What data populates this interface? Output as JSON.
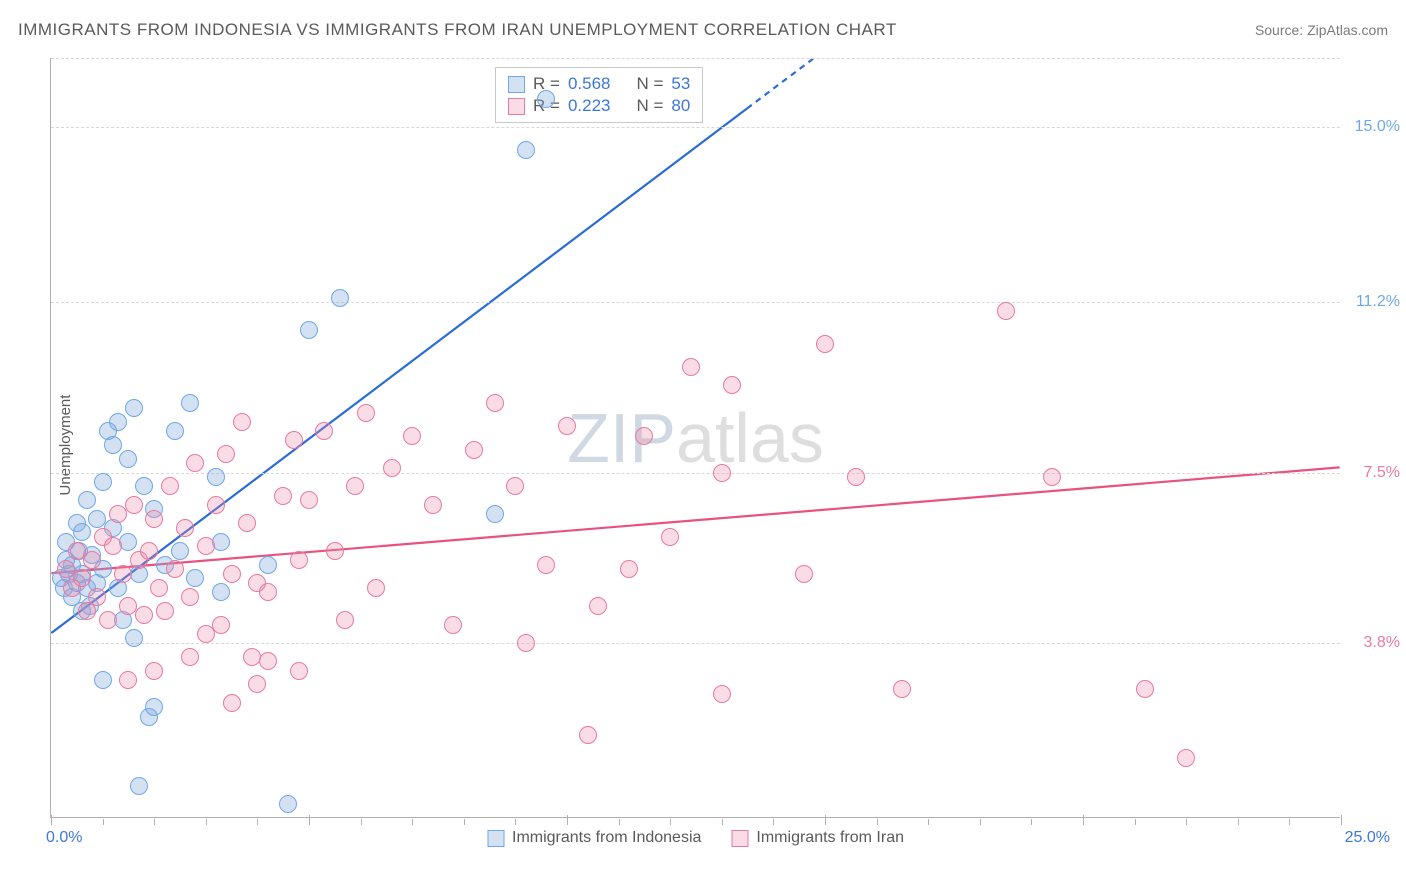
{
  "title": "IMMIGRANTS FROM INDONESIA VS IMMIGRANTS FROM IRAN UNEMPLOYMENT CORRELATION CHART",
  "source": "Source: ZipAtlas.com",
  "ylabel": "Unemployment",
  "watermark_a": "ZIP",
  "watermark_b": "atlas",
  "watermark_color_a": "rgba(120,145,175,0.35)",
  "watermark_color_b": "rgba(160,160,160,0.35)",
  "chart": {
    "type": "scatter",
    "xlim": [
      0,
      25
    ],
    "ylim": [
      0,
      16.5
    ],
    "background_color": "#ffffff",
    "grid_color": "#d8d8d8",
    "yticks": [
      {
        "v": 3.8,
        "label": "3.8%",
        "color": "#e87aa0"
      },
      {
        "v": 7.5,
        "label": "7.5%",
        "color": "#e87aa0"
      },
      {
        "v": 11.2,
        "label": "11.2%",
        "color": "#6fa8e8"
      },
      {
        "v": 15.0,
        "label": "15.0%",
        "color": "#6fa8e8"
      }
    ],
    "xticks_major": [
      0,
      5,
      10,
      15,
      20,
      25
    ],
    "xticks_minor_step": 1,
    "xlabel_left": {
      "text": "0.0%",
      "color": "#3c78d8"
    },
    "xlabel_right": {
      "text": "25.0%",
      "color": "#3c78d8"
    },
    "point_radius": 9,
    "point_border_width": 1.5,
    "series": [
      {
        "name": "Immigrants from Indonesia",
        "fill": "rgba(130,170,220,0.35)",
        "stroke": "#6fa8e8",
        "trend": {
          "x1": 0,
          "y1": 4.0,
          "x2": 14.8,
          "y2": 16.5,
          "color": "#2b6cd4",
          "width": 2.2,
          "dash_after_x": 13.5
        },
        "R": "0.568",
        "N": "53",
        "points": [
          [
            0.2,
            5.2
          ],
          [
            0.25,
            5.0
          ],
          [
            0.3,
            5.6
          ],
          [
            0.3,
            6.0
          ],
          [
            0.35,
            5.3
          ],
          [
            0.4,
            4.8
          ],
          [
            0.4,
            5.5
          ],
          [
            0.5,
            5.1
          ],
          [
            0.5,
            6.4
          ],
          [
            0.55,
            5.8
          ],
          [
            0.6,
            5.3
          ],
          [
            0.6,
            6.2
          ],
          [
            0.7,
            5.0
          ],
          [
            0.7,
            6.9
          ],
          [
            0.75,
            4.6
          ],
          [
            0.8,
            5.7
          ],
          [
            0.9,
            5.1
          ],
          [
            0.9,
            6.5
          ],
          [
            1.0,
            5.4
          ],
          [
            1.0,
            7.3
          ],
          [
            1.1,
            8.4
          ],
          [
            1.2,
            8.1
          ],
          [
            1.2,
            6.3
          ],
          [
            1.3,
            5.0
          ],
          [
            1.3,
            8.6
          ],
          [
            1.5,
            7.8
          ],
          [
            1.5,
            6.0
          ],
          [
            1.6,
            8.9
          ],
          [
            1.7,
            5.3
          ],
          [
            1.8,
            7.2
          ],
          [
            1.9,
            2.2
          ],
          [
            2.0,
            2.4
          ],
          [
            1.7,
            0.7
          ],
          [
            1.6,
            3.9
          ],
          [
            2.2,
            5.5
          ],
          [
            2.4,
            8.4
          ],
          [
            2.5,
            5.8
          ],
          [
            2.7,
            9.0
          ],
          [
            2.8,
            5.2
          ],
          [
            3.2,
            7.4
          ],
          [
            3.3,
            6.0
          ],
          [
            3.3,
            4.9
          ],
          [
            4.2,
            5.5
          ],
          [
            4.6,
            0.3
          ],
          [
            5.0,
            10.6
          ],
          [
            5.6,
            11.3
          ],
          [
            8.6,
            6.6
          ],
          [
            9.2,
            14.5
          ],
          [
            9.6,
            15.6
          ],
          [
            1.0,
            3.0
          ],
          [
            1.4,
            4.3
          ],
          [
            2.0,
            6.7
          ],
          [
            0.6,
            4.5
          ]
        ]
      },
      {
        "name": "Immigrants from Iran",
        "fill": "rgba(235,140,170,0.3)",
        "stroke": "#e87aa0",
        "trend": {
          "x1": 0,
          "y1": 5.3,
          "x2": 25,
          "y2": 7.6,
          "color": "#e8527e",
          "width": 2.2
        },
        "R": "0.223",
        "N": "80",
        "points": [
          [
            0.3,
            5.4
          ],
          [
            0.4,
            5.0
          ],
          [
            0.5,
            5.8
          ],
          [
            0.6,
            5.2
          ],
          [
            0.7,
            4.5
          ],
          [
            0.8,
            5.6
          ],
          [
            0.9,
            4.8
          ],
          [
            1.0,
            6.1
          ],
          [
            1.1,
            4.3
          ],
          [
            1.2,
            5.9
          ],
          [
            1.3,
            6.6
          ],
          [
            1.4,
            5.3
          ],
          [
            1.5,
            4.6
          ],
          [
            1.6,
            6.8
          ],
          [
            1.7,
            5.6
          ],
          [
            1.8,
            4.4
          ],
          [
            1.9,
            5.8
          ],
          [
            2.0,
            6.5
          ],
          [
            2.1,
            5.0
          ],
          [
            2.2,
            4.5
          ],
          [
            2.3,
            7.2
          ],
          [
            2.4,
            5.4
          ],
          [
            2.6,
            6.3
          ],
          [
            2.7,
            4.8
          ],
          [
            2.8,
            7.7
          ],
          [
            3.0,
            5.9
          ],
          [
            3.0,
            4.0
          ],
          [
            3.2,
            6.8
          ],
          [
            3.3,
            4.2
          ],
          [
            3.4,
            7.9
          ],
          [
            3.5,
            5.3
          ],
          [
            3.7,
            8.6
          ],
          [
            3.8,
            6.4
          ],
          [
            3.9,
            3.5
          ],
          [
            4.0,
            5.1
          ],
          [
            4.0,
            2.9
          ],
          [
            4.2,
            3.4
          ],
          [
            4.2,
            4.9
          ],
          [
            4.5,
            7.0
          ],
          [
            4.7,
            8.2
          ],
          [
            4.8,
            5.6
          ],
          [
            4.8,
            3.2
          ],
          [
            5.0,
            6.9
          ],
          [
            5.3,
            8.4
          ],
          [
            5.5,
            5.8
          ],
          [
            5.7,
            4.3
          ],
          [
            5.9,
            7.2
          ],
          [
            6.1,
            8.8
          ],
          [
            6.3,
            5.0
          ],
          [
            6.6,
            7.6
          ],
          [
            7.0,
            8.3
          ],
          [
            7.4,
            6.8
          ],
          [
            7.8,
            4.2
          ],
          [
            8.2,
            8.0
          ],
          [
            8.6,
            9.0
          ],
          [
            9.0,
            7.2
          ],
          [
            9.6,
            5.5
          ],
          [
            10.0,
            8.5
          ],
          [
            10.4,
            1.8
          ],
          [
            10.6,
            4.6
          ],
          [
            11.2,
            5.4
          ],
          [
            11.5,
            8.3
          ],
          [
            12.0,
            6.1
          ],
          [
            12.4,
            9.8
          ],
          [
            13.0,
            7.5
          ],
          [
            13.0,
            2.7
          ],
          [
            13.2,
            9.4
          ],
          [
            14.6,
            5.3
          ],
          [
            15.0,
            10.3
          ],
          [
            15.6,
            7.4
          ],
          [
            16.5,
            2.8
          ],
          [
            18.5,
            11.0
          ],
          [
            19.4,
            7.4
          ],
          [
            21.2,
            2.8
          ],
          [
            22.0,
            1.3
          ],
          [
            9.2,
            3.8
          ],
          [
            3.5,
            2.5
          ],
          [
            2.0,
            3.2
          ],
          [
            1.5,
            3.0
          ],
          [
            2.7,
            3.5
          ]
        ]
      }
    ]
  },
  "bottom_legend": [
    {
      "label": "Immigrants from Indonesia",
      "fill": "rgba(130,170,220,0.35)",
      "stroke": "#6fa8e8"
    },
    {
      "label": "Immigrants from Iran",
      "fill": "rgba(235,140,170,0.3)",
      "stroke": "#e87aa0"
    }
  ]
}
